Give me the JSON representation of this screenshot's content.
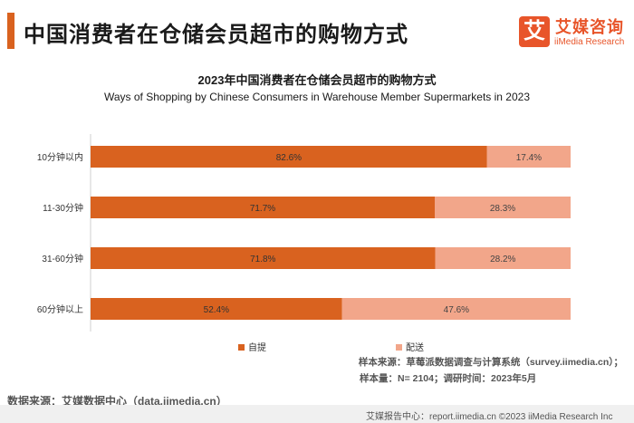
{
  "header": {
    "title": "中国消费者在仓储会员超市的购物方式",
    "logo_mark": "艾",
    "logo_cn": "艾媒咨询",
    "logo_en": "iiMedia Research"
  },
  "chart_data": {
    "type": "bar",
    "orientation": "horizontal",
    "stacked": true,
    "title": "2023年中国消费者在仓储会员超市的购物方式",
    "subtitle": "Ways of Shopping by Chinese Consumers in Warehouse Member Supermarkets in 2023",
    "categories": [
      "10分钟以内",
      "11-30分钟",
      "31-60分钟",
      "60分钟以上"
    ],
    "series": [
      {
        "name": "自提",
        "values": [
          82.6,
          71.7,
          71.8,
          52.4
        ],
        "labels": [
          "82.6%",
          "71.7%",
          "71.8%",
          "52.4%"
        ],
        "color": "#d9621f"
      },
      {
        "name": "配送",
        "values": [
          17.4,
          28.3,
          28.2,
          47.6
        ],
        "labels": [
          "17.4%",
          "28.3%",
          "28.2%",
          "47.6%"
        ],
        "color": "#f2a68a"
      }
    ],
    "xlim": [
      0,
      100
    ],
    "legend_position": "bottom"
  },
  "sources": {
    "sample_source": "样本来源：草莓派数据调查与计算系统（survey.iimedia.cn）；",
    "sample_size": "样本量：N= 2104；调研时间：2023年5月",
    "data_source": "数据来源：艾媒数据中心（data.iimedia.cn）",
    "footer": "艾媒报告中心：report.iimedia.cn ©2023  iiMedia Research  Inc"
  }
}
